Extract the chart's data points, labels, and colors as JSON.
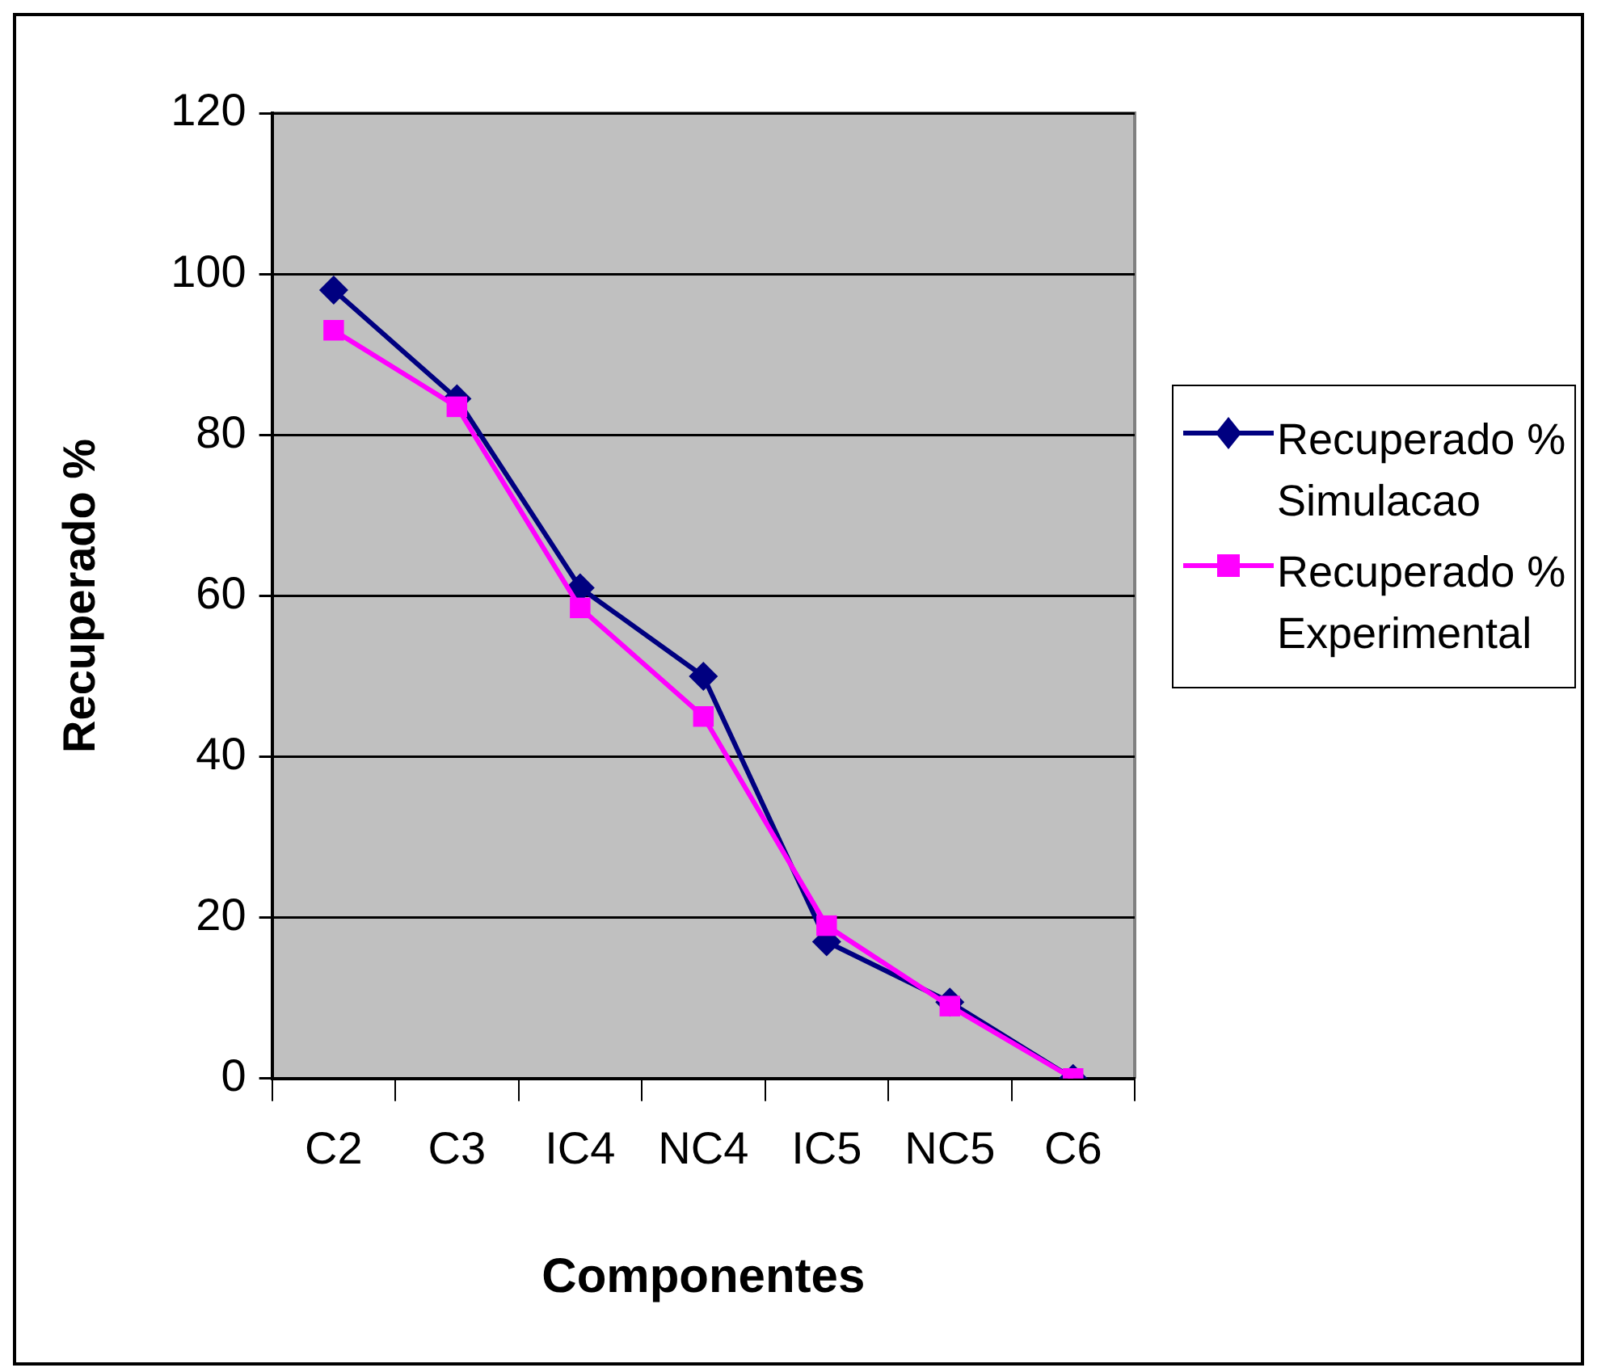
{
  "chart_data": {
    "type": "line",
    "xlabel": "Componentes",
    "ylabel": "Recuperado %",
    "categories": [
      "C2",
      "C3",
      "IC4",
      "NC4",
      "IC5",
      "NC5",
      "C6"
    ],
    "series": [
      {
        "name": "Recuperado % Simulacao",
        "color": "#000080",
        "marker": "diamond",
        "values": [
          98,
          84.5,
          61,
          50,
          17,
          9.5,
          0
        ]
      },
      {
        "name": "Recuperado % Experimental",
        "color": "#ff00ff",
        "marker": "square",
        "values": [
          93,
          83.5,
          58.5,
          45,
          19,
          9,
          0
        ]
      }
    ],
    "ylim": [
      0,
      120
    ],
    "yticks": [
      0,
      20,
      40,
      60,
      80,
      100,
      120
    ],
    "grid": "y",
    "legend": "right",
    "line_style": "solid"
  }
}
